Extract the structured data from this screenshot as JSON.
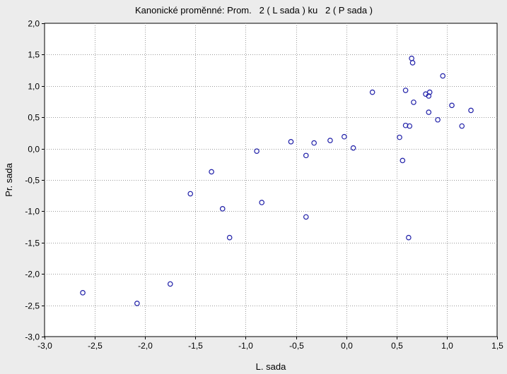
{
  "chart_data": {
    "type": "scatter",
    "title": "Kanonické proměnné: Prom.   2 ( L sada ) ku   2 ( P sada )",
    "xlabel": "L. sada",
    "ylabel": "Pr. sada",
    "xlim": [
      -3.0,
      1.5
    ],
    "ylim": [
      -3.0,
      2.0
    ],
    "grid": true,
    "xticks": [
      -3.0,
      -2.5,
      -2.0,
      -1.5,
      -1.0,
      -0.5,
      0.0,
      0.5,
      1.0,
      1.5
    ],
    "yticks": [
      -3.0,
      -2.5,
      -2.0,
      -1.5,
      -1.0,
      -0.5,
      0.0,
      0.5,
      1.0,
      1.5,
      2.0
    ],
    "xtick_labels": [
      "-3,0",
      "-2,5",
      "-2,0",
      "-1,5",
      "-1,0",
      "-0,5",
      "0,0",
      "0,5",
      "1,0",
      "1,5"
    ],
    "ytick_labels": [
      "-3,0",
      "-2,5",
      "-2,0",
      "-1,5",
      "-1,0",
      "-0,5",
      "0,0",
      "0,5",
      "1,0",
      "1,5",
      "2,0"
    ],
    "marker_color": "#1f1fa8",
    "points": [
      {
        "x": -2.62,
        "y": -2.3
      },
      {
        "x": -2.08,
        "y": -2.47
      },
      {
        "x": -1.75,
        "y": -2.16
      },
      {
        "x": -1.55,
        "y": -0.72
      },
      {
        "x": -1.34,
        "y": -0.37
      },
      {
        "x": -1.23,
        "y": -0.96
      },
      {
        "x": -1.16,
        "y": -1.42
      },
      {
        "x": -0.89,
        "y": -0.04
      },
      {
        "x": -0.84,
        "y": -0.86
      },
      {
        "x": -0.55,
        "y": 0.11
      },
      {
        "x": -0.4,
        "y": -0.11
      },
      {
        "x": -0.4,
        "y": -1.09
      },
      {
        "x": -0.32,
        "y": 0.09
      },
      {
        "x": -0.16,
        "y": 0.13
      },
      {
        "x": -0.02,
        "y": 0.19
      },
      {
        "x": 0.07,
        "y": 0.01
      },
      {
        "x": 0.26,
        "y": 0.9
      },
      {
        "x": 0.53,
        "y": 0.18
      },
      {
        "x": 0.56,
        "y": -0.19
      },
      {
        "x": 0.59,
        "y": 0.93
      },
      {
        "x": 0.59,
        "y": 0.37
      },
      {
        "x": 0.63,
        "y": 0.36
      },
      {
        "x": 0.62,
        "y": -1.42
      },
      {
        "x": 0.65,
        "y": 1.44
      },
      {
        "x": 0.66,
        "y": 1.37
      },
      {
        "x": 0.67,
        "y": 0.74
      },
      {
        "x": 0.79,
        "y": 0.87
      },
      {
        "x": 0.82,
        "y": 0.84
      },
      {
        "x": 0.83,
        "y": 0.9
      },
      {
        "x": 0.82,
        "y": 0.58
      },
      {
        "x": 0.91,
        "y": 0.46
      },
      {
        "x": 0.96,
        "y": 1.16
      },
      {
        "x": 1.05,
        "y": 0.69
      },
      {
        "x": 1.15,
        "y": 0.36
      },
      {
        "x": 1.24,
        "y": 0.61
      }
    ]
  }
}
